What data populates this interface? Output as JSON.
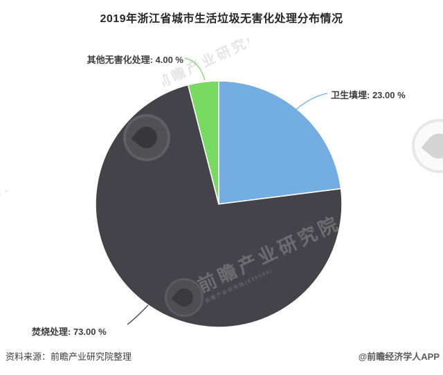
{
  "title": "2019年浙江省城市生活垃圾无害化处理分布情况",
  "footer": {
    "source": "资料来源：前瞻产业研究院整理",
    "credit": "@前瞻经济学人APP"
  },
  "watermark": {
    "brand_text": "前瞻产业研究院",
    "brand_subtext": "前瞻产业研究院(839599)",
    "top_fragment": "前瞻产业研究院",
    "left_fragment": "前瞻产业研究院",
    "left_fragment_sub": "(839599)",
    "corner_fragment": "前瞻产业研究院"
  },
  "chart_data": {
    "type": "pie",
    "title": "2019年浙江省城市生活垃圾无害化处理分布情况",
    "units": "%",
    "direction": "clockwise",
    "start_angle_deg": 0,
    "legend": "none",
    "labels": "outside-with-leader-lines",
    "slices": [
      {
        "label": "卫生填埋",
        "value": 23.0,
        "display_label": "卫生填埋: 23.00 %",
        "color": "#74ADE2"
      },
      {
        "label": "焚烧处理",
        "value": 73.0,
        "display_label": "焚烧处理: 73.00 %",
        "color": "#434349"
      },
      {
        "label": "其他无害化处理",
        "value": 4.0,
        "display_label": "其他无害化处理: 4.00 %",
        "color": "#79DA61"
      }
    ]
  }
}
